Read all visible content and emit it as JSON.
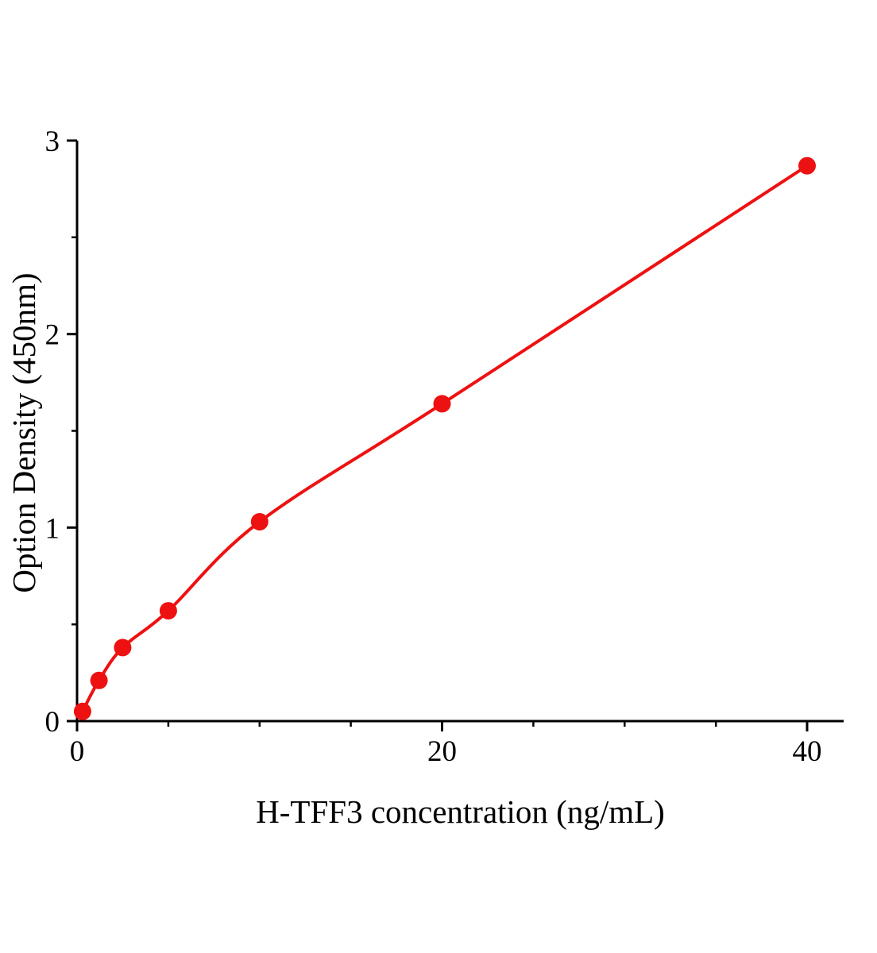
{
  "chart_data": {
    "type": "scatter",
    "title": "",
    "xlabel": "H-TFF3 concentration (ng/mL)",
    "ylabel": "Option Density (450nm)",
    "x": [
      0.3,
      1.2,
      2.5,
      5,
      10,
      20,
      40
    ],
    "y": [
      0.05,
      0.21,
      0.38,
      0.57,
      1.03,
      1.64,
      2.87
    ],
    "fit": "smooth power-law standard curve through points",
    "xlim": [
      0,
      42
    ],
    "ylim": [
      0,
      3
    ],
    "x_major_ticks": [
      0,
      20,
      40
    ],
    "x_major_tick_labels": [
      "0",
      "20",
      "40"
    ],
    "x_minor_step": 5,
    "y_major_ticks": [
      0,
      1,
      2,
      3
    ],
    "y_major_tick_labels": [
      "0",
      "1",
      "2",
      "3"
    ],
    "y_minor_step": 0.5,
    "grid": false,
    "legend": "none",
    "colors": {
      "point": "#ee1111",
      "curve": "#ee1111",
      "axis": "#000000",
      "background": "#ffffff"
    }
  }
}
